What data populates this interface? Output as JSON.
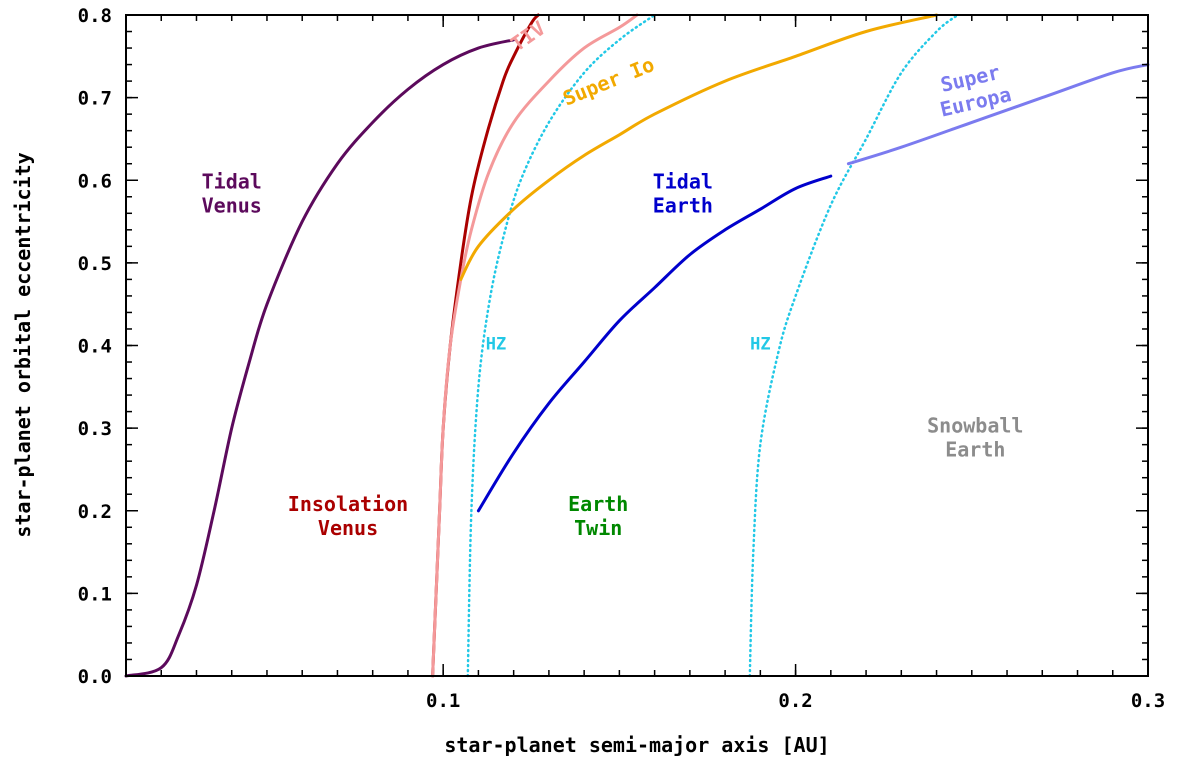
{
  "chart_data": {
    "type": "line",
    "xlabel": "star-planet semi-major axis [AU]",
    "ylabel": "star-planet orbital eccentricity",
    "xlim": [
      0.01,
      0.3
    ],
    "ylim": [
      0.0,
      0.8
    ],
    "x_ticks": [
      {
        "value": 0.1,
        "label": "0.1"
      },
      {
        "value": 0.2,
        "label": "0.2"
      },
      {
        "value": 0.3,
        "label": "0.3"
      }
    ],
    "y_ticks": [
      {
        "value": 0.0,
        "label": "0.0"
      },
      {
        "value": 0.1,
        "label": "0.1"
      },
      {
        "value": 0.2,
        "label": "0.2"
      },
      {
        "value": 0.3,
        "label": "0.3"
      },
      {
        "value": 0.4,
        "label": "0.4"
      },
      {
        "value": 0.5,
        "label": "0.5"
      },
      {
        "value": 0.6,
        "label": "0.6"
      },
      {
        "value": 0.7,
        "label": "0.7"
      },
      {
        "value": 0.8,
        "label": "0.8"
      }
    ],
    "grid": false,
    "series": [
      {
        "key": "tidal-venus-curve",
        "color": "#5c0a5c",
        "style": "solid",
        "points": [
          [
            0.01,
            0.0
          ],
          [
            0.02,
            0.01
          ],
          [
            0.025,
            0.05
          ],
          [
            0.03,
            0.11
          ],
          [
            0.035,
            0.2
          ],
          [
            0.04,
            0.3
          ],
          [
            0.045,
            0.38
          ],
          [
            0.05,
            0.45
          ],
          [
            0.06,
            0.55
          ],
          [
            0.07,
            0.62
          ],
          [
            0.08,
            0.67
          ],
          [
            0.09,
            0.71
          ],
          [
            0.1,
            0.74
          ],
          [
            0.11,
            0.76
          ],
          [
            0.12,
            0.77
          ]
        ]
      },
      {
        "key": "insolation-venus-curve",
        "color": "#aa0000",
        "style": "solid",
        "points": [
          [
            0.097,
            0.0
          ],
          [
            0.098,
            0.1
          ],
          [
            0.099,
            0.2
          ],
          [
            0.1,
            0.3
          ],
          [
            0.102,
            0.4
          ],
          [
            0.105,
            0.5
          ],
          [
            0.108,
            0.58
          ],
          [
            0.112,
            0.65
          ],
          [
            0.117,
            0.72
          ],
          [
            0.12,
            0.75
          ],
          [
            0.125,
            0.79
          ],
          [
            0.127,
            0.8
          ]
        ]
      },
      {
        "key": "tiv-curve",
        "color": "#f4999a",
        "style": "solid",
        "points": [
          [
            0.097,
            0.0
          ],
          [
            0.098,
            0.1
          ],
          [
            0.099,
            0.2
          ],
          [
            0.1,
            0.3
          ],
          [
            0.102,
            0.4
          ],
          [
            0.105,
            0.48
          ],
          [
            0.108,
            0.54
          ],
          [
            0.113,
            0.61
          ],
          [
            0.12,
            0.67
          ],
          [
            0.13,
            0.72
          ],
          [
            0.14,
            0.76
          ],
          [
            0.15,
            0.785
          ],
          [
            0.155,
            0.8
          ]
        ]
      },
      {
        "key": "hz-inner-curve",
        "color": "#22c8e6",
        "style": "dotted",
        "points": [
          [
            0.107,
            0.0
          ],
          [
            0.108,
            0.2
          ],
          [
            0.11,
            0.35
          ],
          [
            0.113,
            0.45
          ],
          [
            0.117,
            0.53
          ],
          [
            0.122,
            0.6
          ],
          [
            0.13,
            0.67
          ],
          [
            0.14,
            0.73
          ],
          [
            0.15,
            0.77
          ],
          [
            0.16,
            0.8
          ]
        ]
      },
      {
        "key": "hz-outer-curve",
        "color": "#22c8e6",
        "style": "dotted",
        "points": [
          [
            0.187,
            0.0
          ],
          [
            0.188,
            0.15
          ],
          [
            0.19,
            0.28
          ],
          [
            0.195,
            0.39
          ],
          [
            0.2,
            0.46
          ],
          [
            0.21,
            0.57
          ],
          [
            0.22,
            0.65
          ],
          [
            0.23,
            0.73
          ],
          [
            0.24,
            0.78
          ],
          [
            0.246,
            0.8
          ]
        ]
      },
      {
        "key": "super-io-curve",
        "color": "#f2a900",
        "style": "solid",
        "points": [
          [
            0.105,
            0.48
          ],
          [
            0.11,
            0.52
          ],
          [
            0.12,
            0.565
          ],
          [
            0.13,
            0.6
          ],
          [
            0.14,
            0.63
          ],
          [
            0.15,
            0.655
          ],
          [
            0.16,
            0.68
          ],
          [
            0.18,
            0.72
          ],
          [
            0.2,
            0.75
          ],
          [
            0.22,
            0.78
          ],
          [
            0.24,
            0.8
          ]
        ]
      },
      {
        "key": "tidal-earth-curve",
        "color": "#0000cc",
        "style": "solid",
        "points": [
          [
            0.11,
            0.2
          ],
          [
            0.12,
            0.27
          ],
          [
            0.13,
            0.33
          ],
          [
            0.14,
            0.38
          ],
          [
            0.15,
            0.43
          ],
          [
            0.16,
            0.47
          ],
          [
            0.17,
            0.51
          ],
          [
            0.18,
            0.54
          ],
          [
            0.19,
            0.565
          ],
          [
            0.2,
            0.59
          ],
          [
            0.21,
            0.605
          ]
        ]
      },
      {
        "key": "super-europa-curve",
        "color": "#7b7bef",
        "style": "solid",
        "points": [
          [
            0.215,
            0.62
          ],
          [
            0.23,
            0.64
          ],
          [
            0.25,
            0.67
          ],
          [
            0.27,
            0.7
          ],
          [
            0.29,
            0.73
          ],
          [
            0.3,
            0.74
          ]
        ]
      }
    ],
    "annotations": [
      {
        "key": "tidal-venus",
        "lines": [
          "Tidal",
          "Venus"
        ],
        "x": 0.04,
        "y": 0.59,
        "color": "#5c0a5c",
        "anchor": "middle"
      },
      {
        "key": "insolation-venus",
        "lines": [
          "Insolation",
          "Venus"
        ],
        "x": 0.073,
        "y": 0.2,
        "color": "#aa0000",
        "anchor": "middle"
      },
      {
        "key": "tiv",
        "lines": [
          "TIV"
        ],
        "x": 0.121,
        "y": 0.755,
        "color": "#f4999a",
        "anchor": "start",
        "rotate": -35
      },
      {
        "key": "super-io",
        "lines": [
          "Super Io"
        ],
        "x": 0.135,
        "y": 0.69,
        "color": "#f2a900",
        "anchor": "start",
        "rotate": -22
      },
      {
        "key": "super-europa",
        "lines": [
          "Super",
          "Europa"
        ],
        "x": 0.25,
        "y": 0.715,
        "color": "#7b7bef",
        "anchor": "middle",
        "rotate": -13
      },
      {
        "key": "tidal-earth",
        "lines": [
          "Tidal",
          "Earth"
        ],
        "x": 0.168,
        "y": 0.59,
        "color": "#0000cc",
        "anchor": "middle"
      },
      {
        "key": "hz-inner",
        "lines": [
          "HZ"
        ],
        "x": 0.115,
        "y": 0.395,
        "color": "#22c8e6",
        "anchor": "middle",
        "small": true
      },
      {
        "key": "hz-outer",
        "lines": [
          "HZ"
        ],
        "x": 0.19,
        "y": 0.395,
        "color": "#22c8e6",
        "anchor": "middle",
        "small": true
      },
      {
        "key": "earth-twin",
        "lines": [
          "Earth",
          "Twin"
        ],
        "x": 0.144,
        "y": 0.2,
        "color": "#008800",
        "anchor": "middle"
      },
      {
        "key": "snowball-earth",
        "lines": [
          "Snowball",
          "Earth"
        ],
        "x": 0.251,
        "y": 0.295,
        "color": "#8c8c8c",
        "anchor": "middle",
        "normal": true
      }
    ]
  }
}
